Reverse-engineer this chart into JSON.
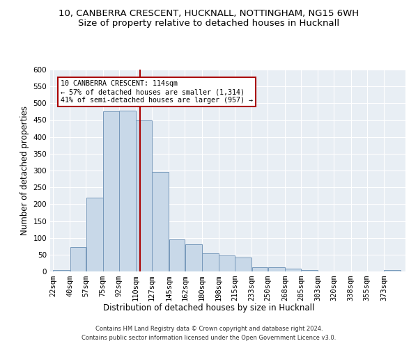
{
  "title1": "10, CANBERRA CRESCENT, HUCKNALL, NOTTINGHAM, NG15 6WH",
  "title2": "Size of property relative to detached houses in Hucknall",
  "xlabel": "Distribution of detached houses by size in Hucknall",
  "ylabel": "Number of detached properties",
  "categories": [
    "22sqm",
    "40sqm",
    "57sqm",
    "75sqm",
    "92sqm",
    "110sqm",
    "127sqm",
    "145sqm",
    "162sqm",
    "180sqm",
    "198sqm",
    "215sqm",
    "233sqm",
    "250sqm",
    "268sqm",
    "285sqm",
    "303sqm",
    "320sqm",
    "338sqm",
    "355sqm",
    "373sqm"
  ],
  "bin_edges": [
    22,
    40,
    57,
    75,
    92,
    110,
    127,
    145,
    162,
    180,
    198,
    215,
    233,
    250,
    268,
    285,
    303,
    320,
    338,
    355,
    373,
    391
  ],
  "values": [
    5,
    72,
    220,
    475,
    478,
    450,
    295,
    96,
    81,
    54,
    47,
    41,
    13,
    13,
    8,
    5,
    0,
    0,
    0,
    0,
    5
  ],
  "bar_color": "#c8d8e8",
  "bar_edge_color": "#7799bb",
  "property_size": 114,
  "annotation_text": "10 CANBERRA CRESCENT: 114sqm\n← 57% of detached houses are smaller (1,314)\n41% of semi-detached houses are larger (957) →",
  "vline_color": "#aa0000",
  "vline_x": 114,
  "annotation_box_color": "#ffffff",
  "annotation_box_edge": "#aa0000",
  "ylim": [
    0,
    600
  ],
  "yticks": [
    0,
    50,
    100,
    150,
    200,
    250,
    300,
    350,
    400,
    450,
    500,
    550,
    600
  ],
  "background_color": "#e8eef4",
  "footer1": "Contains HM Land Registry data © Crown copyright and database right 2024.",
  "footer2": "Contains public sector information licensed under the Open Government Licence v3.0.",
  "title1_fontsize": 9.5,
  "title2_fontsize": 9.5,
  "axis_label_fontsize": 8.5,
  "tick_fontsize": 7.5,
  "footer_fontsize": 6.0
}
